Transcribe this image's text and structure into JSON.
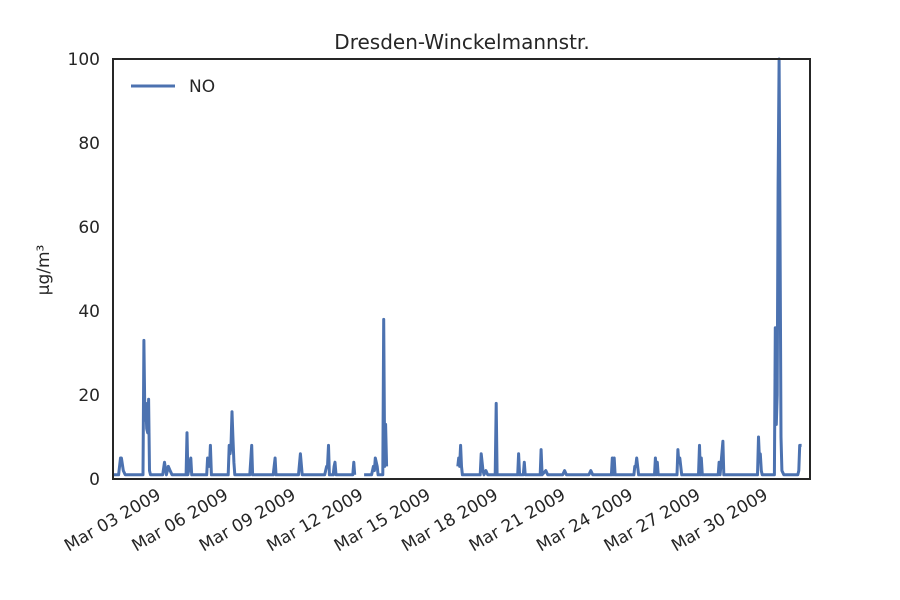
{
  "chart_data": {
    "type": "line",
    "title": "Dresden-Winckelmannstr.",
    "xlabel": "",
    "ylabel": "µg/m³",
    "ylim": [
      0,
      100
    ],
    "xlim": [
      "2009-03-01",
      "2009-04-01"
    ],
    "yticks": [
      "0",
      "20",
      "40",
      "60",
      "80",
      "100"
    ],
    "xticks": [
      {
        "label": "Mar 03 2009",
        "date": "2009-03-03"
      },
      {
        "label": "Mar 06 2009",
        "date": "2009-03-06"
      },
      {
        "label": "Mar 09 2009",
        "date": "2009-03-09"
      },
      {
        "label": "Mar 12 2009",
        "date": "2009-03-12"
      },
      {
        "label": "Mar 15 2009",
        "date": "2009-03-15"
      },
      {
        "label": "Mar 18 2009",
        "date": "2009-03-18"
      },
      {
        "label": "Mar 21 2009",
        "date": "2009-03-21"
      },
      {
        "label": "Mar 24 2009",
        "date": "2009-03-24"
      },
      {
        "label": "Mar 27 2009",
        "date": "2009-03-27"
      },
      {
        "label": "Mar 30 2009",
        "date": "2009-03-30"
      }
    ],
    "grid": false,
    "legend_position": "top-left",
    "series": [
      {
        "name": "NO",
        "color": "#4c72b0",
        "segments": [
          [
            [
              "2009-03-01 00:00",
              1
            ],
            [
              "2009-03-01 06:00",
              1
            ],
            [
              "2009-03-01 08:00",
              5
            ],
            [
              "2009-03-01 09:00",
              5
            ],
            [
              "2009-03-01 11:00",
              2
            ],
            [
              "2009-03-01 13:00",
              1
            ],
            [
              "2009-03-02 06:00",
              1
            ],
            [
              "2009-03-02 08:00",
              1
            ],
            [
              "2009-03-02 09:00",
              33
            ],
            [
              "2009-03-02 10:00",
              14
            ],
            [
              "2009-03-02 11:00",
              18
            ],
            [
              "2009-03-02 12:00",
              12
            ],
            [
              "2009-03-02 13:00",
              11
            ],
            [
              "2009-03-02 14:00",
              19
            ],
            [
              "2009-03-02 15:00",
              2
            ],
            [
              "2009-03-02 16:00",
              1
            ],
            [
              "2009-03-03 05:00",
              1
            ],
            [
              "2009-03-03 07:00",
              4
            ],
            [
              "2009-03-03 09:00",
              1
            ],
            [
              "2009-03-03 11:00",
              3
            ],
            [
              "2009-03-03 13:00",
              2
            ],
            [
              "2009-03-03 15:00",
              1
            ],
            [
              "2009-03-04 06:00",
              1
            ],
            [
              "2009-03-04 07:00",
              11
            ],
            [
              "2009-03-04 08:00",
              1
            ],
            [
              "2009-03-04 11:00",
              5
            ],
            [
              "2009-03-04 12:00",
              1
            ],
            [
              "2009-03-05 04:00",
              1
            ],
            [
              "2009-03-05 05:00",
              5
            ],
            [
              "2009-03-05 07:00",
              3
            ],
            [
              "2009-03-05 08:00",
              8
            ],
            [
              "2009-03-05 09:00",
              1
            ],
            [
              "2009-03-06 03:00",
              1
            ],
            [
              "2009-03-06 04:00",
              8
            ],
            [
              "2009-03-06 05:00",
              6
            ],
            [
              "2009-03-06 06:00",
              8
            ],
            [
              "2009-03-06 07:00",
              16
            ],
            [
              "2009-03-06 08:00",
              10
            ],
            [
              "2009-03-06 09:00",
              4
            ],
            [
              "2009-03-06 10:00",
              1
            ],
            [
              "2009-03-07 02:00",
              1
            ],
            [
              "2009-03-07 04:00",
              8
            ],
            [
              "2009-03-07 05:00",
              1
            ],
            [
              "2009-03-08 03:00",
              1
            ],
            [
              "2009-03-08 05:00",
              5
            ],
            [
              "2009-03-08 06:00",
              1
            ],
            [
              "2009-03-09 06:00",
              1
            ],
            [
              "2009-03-09 08:00",
              6
            ],
            [
              "2009-03-09 10:00",
              1
            ],
            [
              "2009-03-10 10:00",
              1
            ],
            [
              "2009-03-10 12:00",
              3
            ],
            [
              "2009-03-10 13:00",
              3
            ],
            [
              "2009-03-10 14:00",
              8
            ],
            [
              "2009-03-10 15:00",
              1
            ],
            [
              "2009-03-10 19:00",
              1
            ],
            [
              "2009-03-10 20:00",
              3
            ],
            [
              "2009-03-10 21:00",
              4
            ],
            [
              "2009-03-10 22:00",
              1
            ],
            [
              "2009-03-11 16:00",
              1
            ],
            [
              "2009-03-11 17:00",
              4
            ],
            [
              "2009-03-11 18:00",
              1
            ]
          ],
          [
            [
              "2009-03-12 04:00",
              1
            ],
            [
              "2009-03-12 12:00",
              1
            ],
            [
              "2009-03-12 14:00",
              3
            ],
            [
              "2009-03-12 15:00",
              2
            ],
            [
              "2009-03-12 16:00",
              5
            ],
            [
              "2009-03-12 18:00",
              3
            ],
            [
              "2009-03-12 19:00",
              1
            ],
            [
              "2009-03-13 00:00",
              1
            ],
            [
              "2009-03-13 01:00",
              38
            ],
            [
              "2009-03-13 02:00",
              3
            ],
            [
              "2009-03-13 03:00",
              13
            ],
            [
              "2009-03-13 04:00",
              3
            ]
          ],
          [
            [
              "2009-03-16 08:00",
              3
            ],
            [
              "2009-03-16 09:00",
              5
            ],
            [
              "2009-03-16 10:00",
              3
            ],
            [
              "2009-03-16 11:00",
              8
            ],
            [
              "2009-03-16 12:00",
              3
            ],
            [
              "2009-03-16 13:00",
              1
            ],
            [
              "2009-03-17 08:00",
              1
            ],
            [
              "2009-03-17 09:00",
              6
            ],
            [
              "2009-03-17 10:00",
              4
            ],
            [
              "2009-03-17 11:00",
              2
            ],
            [
              "2009-03-17 12:00",
              1
            ],
            [
              "2009-03-17 14:00",
              2
            ],
            [
              "2009-03-17 16:00",
              1
            ],
            [
              "2009-03-18 00:00",
              1
            ],
            [
              "2009-03-18 01:00",
              18
            ],
            [
              "2009-03-18 02:00",
              1
            ],
            [
              "2009-03-19 00:00",
              1
            ],
            [
              "2009-03-19 01:00",
              6
            ],
            [
              "2009-03-19 02:00",
              1
            ],
            [
              "2009-03-19 06:00",
              1
            ],
            [
              "2009-03-19 07:00",
              4
            ],
            [
              "2009-03-19 08:00",
              1
            ],
            [
              "2009-03-20 00:00",
              1
            ],
            [
              "2009-03-20 01:00",
              7
            ],
            [
              "2009-03-20 02:00",
              1
            ],
            [
              "2009-03-20 06:00",
              2
            ],
            [
              "2009-03-20 08:00",
              1
            ],
            [
              "2009-03-21 00:00",
              1
            ],
            [
              "2009-03-21 02:00",
              2
            ],
            [
              "2009-03-21 04:00",
              1
            ],
            [
              "2009-03-22 04:00",
              1
            ],
            [
              "2009-03-22 06:00",
              2
            ],
            [
              "2009-03-22 08:00",
              1
            ],
            [
              "2009-03-23 04:00",
              1
            ],
            [
              "2009-03-23 05:00",
              5
            ],
            [
              "2009-03-23 06:00",
              1
            ],
            [
              "2009-03-23 07:00",
              5
            ],
            [
              "2009-03-23 08:00",
              1
            ],
            [
              "2009-03-24 04:00",
              1
            ],
            [
              "2009-03-24 05:00",
              3
            ],
            [
              "2009-03-24 06:00",
              3
            ],
            [
              "2009-03-24 07:00",
              5
            ],
            [
              "2009-03-24 09:00",
              1
            ],
            [
              "2009-03-25 02:00",
              1
            ],
            [
              "2009-03-25 03:00",
              5
            ],
            [
              "2009-03-25 04:00",
              1
            ],
            [
              "2009-03-25 05:00",
              4
            ],
            [
              "2009-03-25 06:00",
              1
            ],
            [
              "2009-03-26 02:00",
              1
            ],
            [
              "2009-03-26 03:00",
              7
            ],
            [
              "2009-03-26 04:00",
              4
            ],
            [
              "2009-03-26 05:00",
              5
            ],
            [
              "2009-03-26 07:00",
              1
            ],
            [
              "2009-03-27 01:00",
              1
            ],
            [
              "2009-03-27 02:00",
              8
            ],
            [
              "2009-03-27 03:00",
              1
            ],
            [
              "2009-03-27 04:00",
              5
            ],
            [
              "2009-03-27 05:00",
              1
            ],
            [
              "2009-03-27 22:00",
              1
            ],
            [
              "2009-03-27 23:00",
              4
            ],
            [
              "2009-03-28 00:00",
              1
            ],
            [
              "2009-03-28 03:00",
              9
            ],
            [
              "2009-03-28 04:00",
              1
            ],
            [
              "2009-03-29 16:00",
              1
            ],
            [
              "2009-03-29 17:00",
              10
            ],
            [
              "2009-03-29 18:00",
              5
            ],
            [
              "2009-03-29 19:00",
              6
            ],
            [
              "2009-03-29 20:00",
              2
            ],
            [
              "2009-03-29 21:00",
              1
            ],
            [
              "2009-03-30 10:00",
              1
            ],
            [
              "2009-03-30 11:00",
              36
            ],
            [
              "2009-03-30 12:00",
              13
            ],
            [
              "2009-03-30 13:00",
              20
            ],
            [
              "2009-03-30 14:00",
              70
            ],
            [
              "2009-03-30 15:00",
              100
            ],
            [
              "2009-03-30 16:00",
              60
            ],
            [
              "2009-03-30 17:00",
              10
            ],
            [
              "2009-03-30 18:00",
              2
            ],
            [
              "2009-03-30 20:00",
              1
            ],
            [
              "2009-03-31 11:00",
              1
            ],
            [
              "2009-03-31 12:00",
              2
            ],
            [
              "2009-03-31 13:00",
              8
            ],
            [
              "2009-03-31 15:00",
              8
            ]
          ]
        ]
      }
    ]
  }
}
